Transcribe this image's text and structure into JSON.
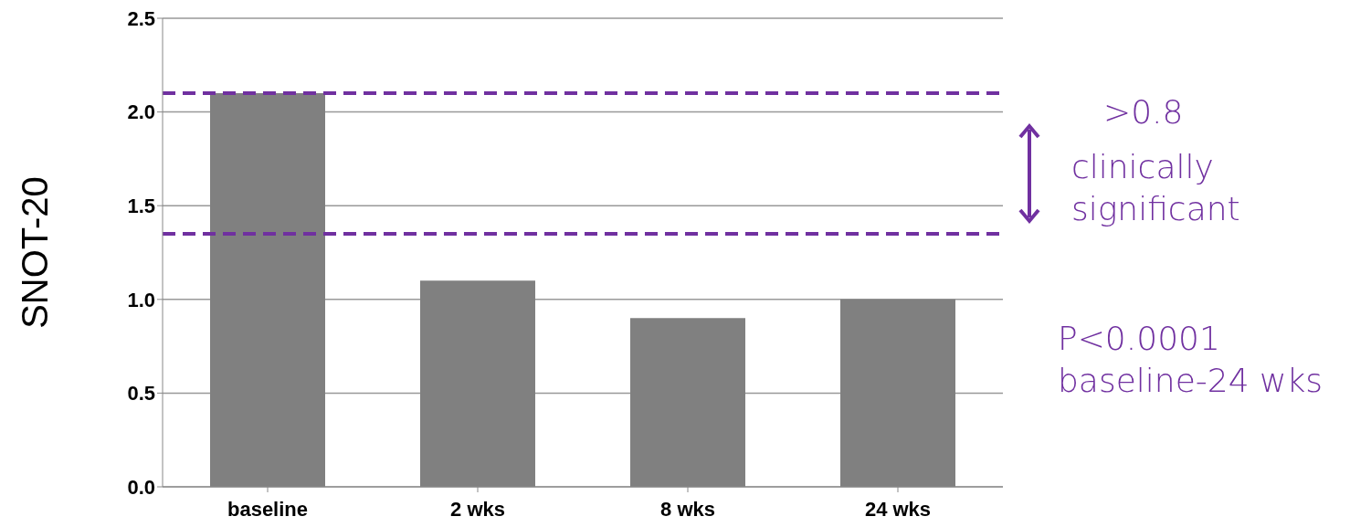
{
  "chart_data": {
    "type": "bar",
    "ylabel": "SNOT-20",
    "categories": [
      "baseline",
      "2 wks",
      "8 wks",
      "24 wks"
    ],
    "values": [
      2.1,
      1.1,
      0.9,
      1.0
    ],
    "color": "#808080",
    "ylim": [
      0,
      2.5
    ],
    "yticks": [
      {
        "value": 0,
        "label": "0.0"
      },
      {
        "value": 0.5,
        "label": "0.5"
      },
      {
        "value": 1,
        "label": "1.0"
      },
      {
        "value": 1.5,
        "label": "1.5"
      },
      {
        "value": 2,
        "label": "2.0"
      },
      {
        "value": 2.5,
        "label": "2.5"
      }
    ],
    "grid": "y",
    "legend": false,
    "ref_lines": [
      {
        "axis": "y",
        "value": 2.1,
        "color": "#7030a0",
        "line_style": "dashed"
      },
      {
        "axis": "y",
        "value": 1.35,
        "color": "#7030a0",
        "line_style": "dashed"
      }
    ],
    "annotations": [
      ">0.8",
      "clinically significant",
      "P<0.0001 baseline-24 wks"
    ]
  }
}
